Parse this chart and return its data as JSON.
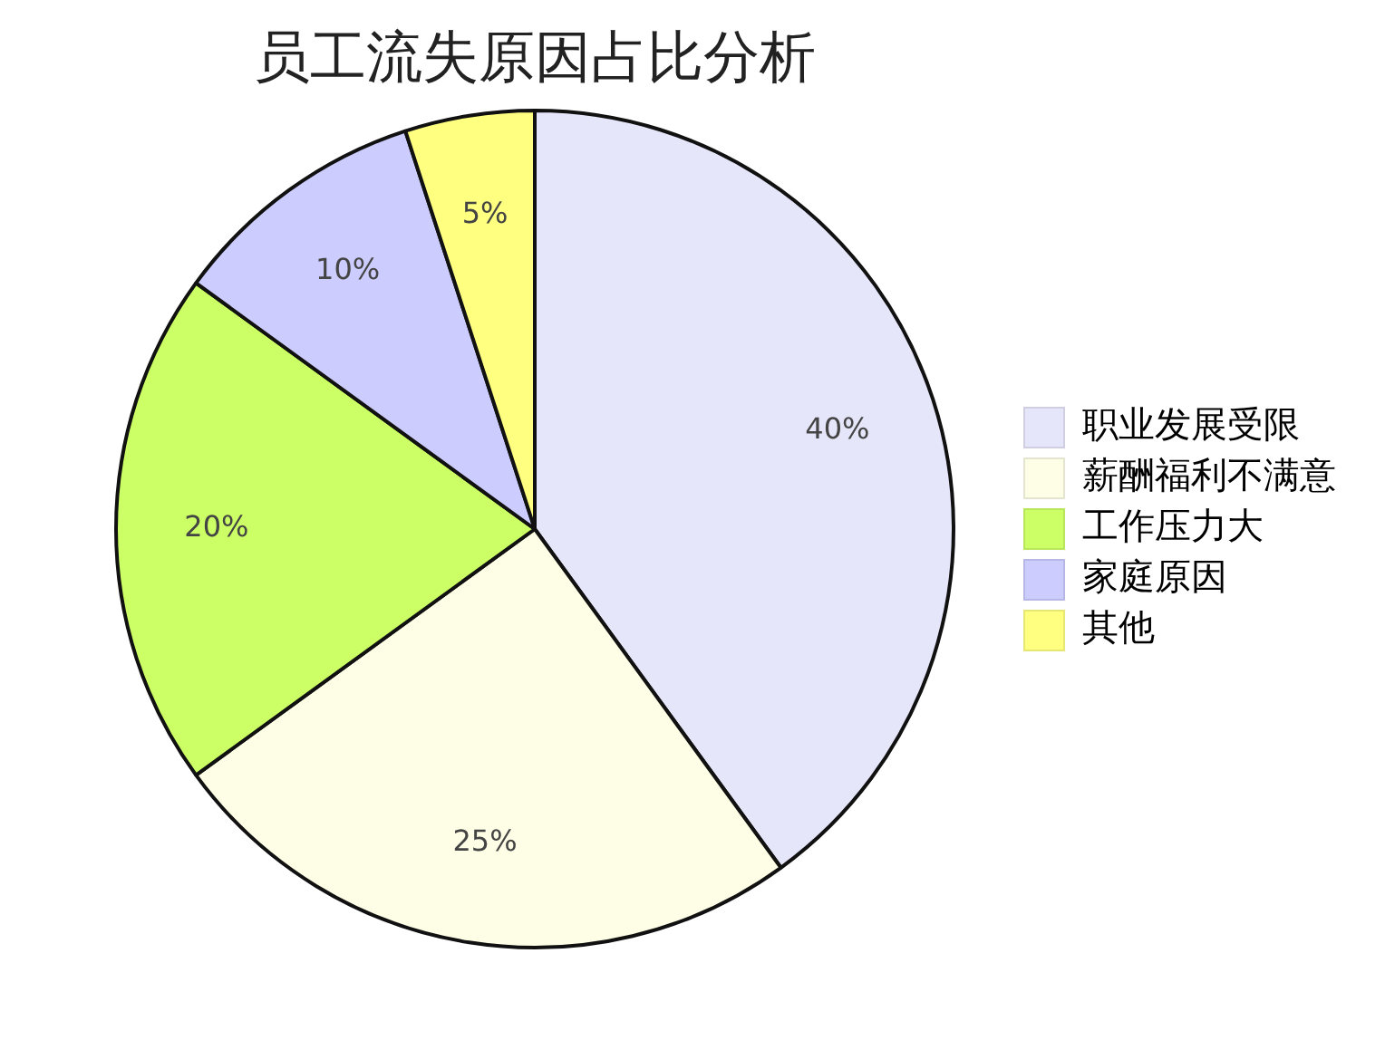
{
  "chart_data": {
    "type": "pie",
    "title": "员工流失原因占比分析",
    "categories": [
      "职业发展受限",
      "薪酬福利不满意",
      "工作压力大",
      "家庭原因",
      "其他"
    ],
    "values": [
      40,
      25,
      20,
      10,
      5
    ],
    "colors": [
      "#e6e6fa",
      "#fefee6",
      "#ccff66",
      "#ccccff",
      "#ffff80"
    ],
    "value_labels": [
      "40%",
      "25%",
      "20%",
      "10%",
      "5%"
    ],
    "legend": "right"
  }
}
